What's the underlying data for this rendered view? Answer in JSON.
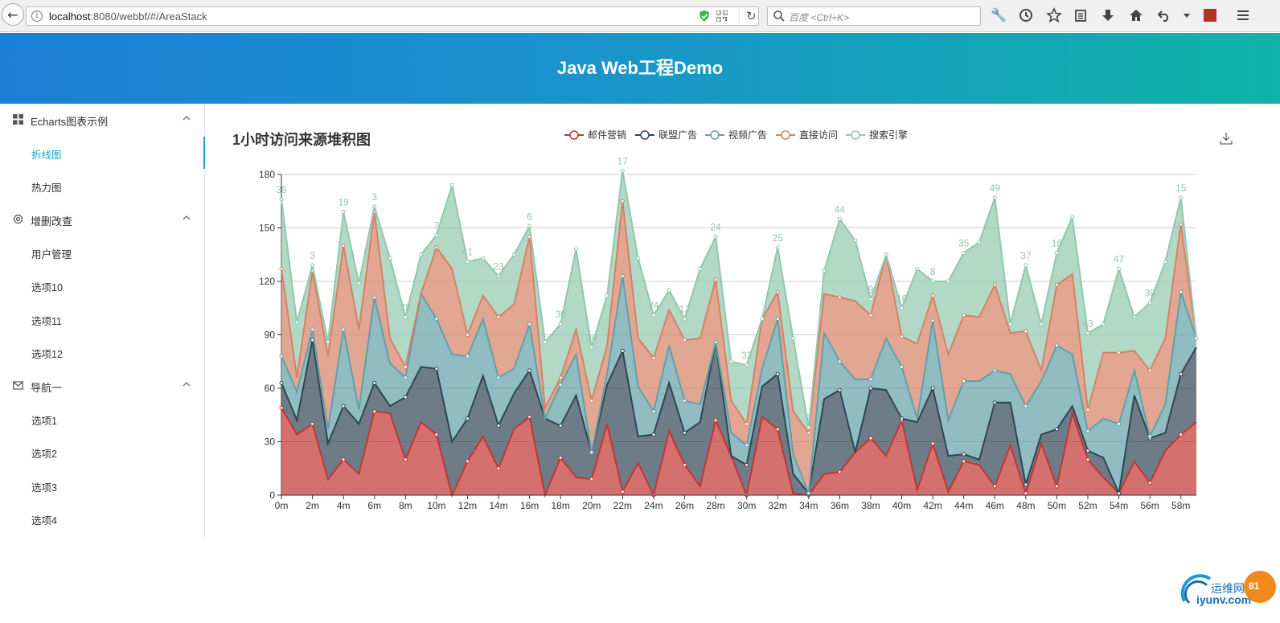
{
  "browser": {
    "url_host": "localhost",
    "url_rest": ":8080/webbf/#/AreaStack",
    "search_placeholder": "百度 <Ctrl+K>"
  },
  "header": {
    "title": "Java Web工程Demo"
  },
  "sidebar": {
    "groups": [
      {
        "label": "Echarts图表示例",
        "icon": "grid-icon",
        "items": [
          "折线图",
          "热力图"
        ]
      },
      {
        "label": "增删改查",
        "icon": "gear-icon",
        "items": [
          "用户管理",
          "选项10",
          "选项11",
          "选项12"
        ]
      },
      {
        "label": "导航一",
        "icon": "mail-icon",
        "items": [
          "选项1",
          "选项2",
          "选项3",
          "选项4"
        ]
      }
    ],
    "active_item": "折线图"
  },
  "watermark": {
    "text1": "运维网",
    "text2": "iyunv.com",
    "badge": "81"
  },
  "chart_data": {
    "type": "area",
    "stacked": true,
    "title": "1小时访问来源堆积图",
    "legend_position": "top-center",
    "grid": true,
    "ylim": [
      0,
      180
    ],
    "y_ticks": [
      0,
      30,
      60,
      90,
      120,
      150,
      180
    ],
    "x_tick_labels": [
      "0m",
      "2m",
      "4m",
      "6m",
      "8m",
      "10m",
      "12m",
      "14m",
      "16m",
      "18m",
      "20m",
      "22m",
      "24m",
      "26m",
      "28m",
      "30m",
      "32m",
      "34m",
      "36m",
      "38m",
      "40m",
      "42m",
      "44m",
      "46m",
      "48m",
      "50m",
      "52m",
      "54m",
      "56m",
      "58m"
    ],
    "colors": [
      "#c23531",
      "#2f4554",
      "#61a0a8",
      "#d48265",
      "#91c7ae"
    ],
    "series": [
      {
        "name": "邮件营销",
        "values": [
          49,
          34,
          40,
          9,
          20,
          12,
          47,
          46,
          20,
          41,
          34,
          0,
          19,
          33,
          15,
          37,
          44,
          0,
          21,
          10,
          9,
          40,
          2,
          18,
          0,
          36,
          17,
          5,
          42,
          22,
          0,
          44,
          37,
          1,
          0,
          12,
          13,
          24,
          32,
          22,
          42,
          3,
          29,
          2,
          19,
          17,
          5,
          28,
          1,
          29,
          5,
          46,
          20,
          10,
          1,
          19,
          7,
          25,
          34,
          41
        ]
      },
      {
        "name": "联盟广告",
        "values": [
          14,
          8,
          47,
          20,
          30,
          28,
          16,
          4,
          35,
          31,
          37,
          30,
          24,
          34,
          24,
          20,
          26,
          43,
          18,
          46,
          15,
          22,
          79,
          15,
          34,
          27,
          18,
          36,
          44,
          0,
          17,
          17,
          31,
          11,
          1,
          42,
          46,
          0,
          28,
          37,
          1,
          38,
          31,
          20,
          4,
          3,
          47,
          24,
          5,
          5,
          32,
          4,
          5,
          11,
          0,
          37,
          25,
          10,
          34,
          42
        ]
      },
      {
        "name": "视频广告",
        "values": [
          15,
          16,
          6,
          8,
          43,
          8,
          48,
          24,
          11,
          41,
          28,
          49,
          35,
          32,
          27,
          14,
          26,
          0,
          23,
          23,
          0,
          6,
          42,
          28,
          13,
          21,
          18,
          10,
          0,
          13,
          11,
          10,
          31,
          11,
          0,
          37,
          16,
          41,
          5,
          29,
          29,
          2,
          38,
          20,
          41,
          44,
          18,
          16,
          44,
          30,
          47,
          29,
          11,
          22,
          39,
          14,
          1,
          16,
          46,
          5
        ]
      },
      {
        "name": "直接访问",
        "values": [
          49,
          8,
          33,
          41,
          47,
          45,
          48,
          14,
          6,
          0,
          40,
          48,
          12,
          13,
          34,
          36,
          49,
          6,
          4,
          14,
          29,
          16,
          42,
          27,
          30,
          20,
          34,
          37,
          35,
          18,
          12,
          28,
          15,
          24,
          34,
          22,
          36,
          44,
          36,
          47,
          17,
          42,
          14,
          37,
          37,
          36,
          48,
          23,
          42,
          6,
          34,
          45,
          12,
          37,
          40,
          11,
          37,
          37,
          38,
          0
        ]
      },
      {
        "name": "搜索引擎",
        "values": [
          39,
          31,
          3,
          8,
          19,
          26,
          3,
          45,
          28,
          22,
          7,
          47,
          41,
          21,
          23,
          28,
          6,
          37,
          30,
          45,
          30,
          28,
          17,
          45,
          24,
          11,
          12,
          39,
          24,
          22,
          33,
          0,
          25,
          41,
          3,
          13,
          44,
          34,
          9,
          0,
          16,
          42,
          8,
          41,
          35,
          42,
          49,
          5,
          37,
          26,
          18,
          32,
          43,
          16,
          47,
          19,
          38,
          43,
          15,
          0
        ]
      }
    ],
    "label_series": "搜索引擎"
  }
}
